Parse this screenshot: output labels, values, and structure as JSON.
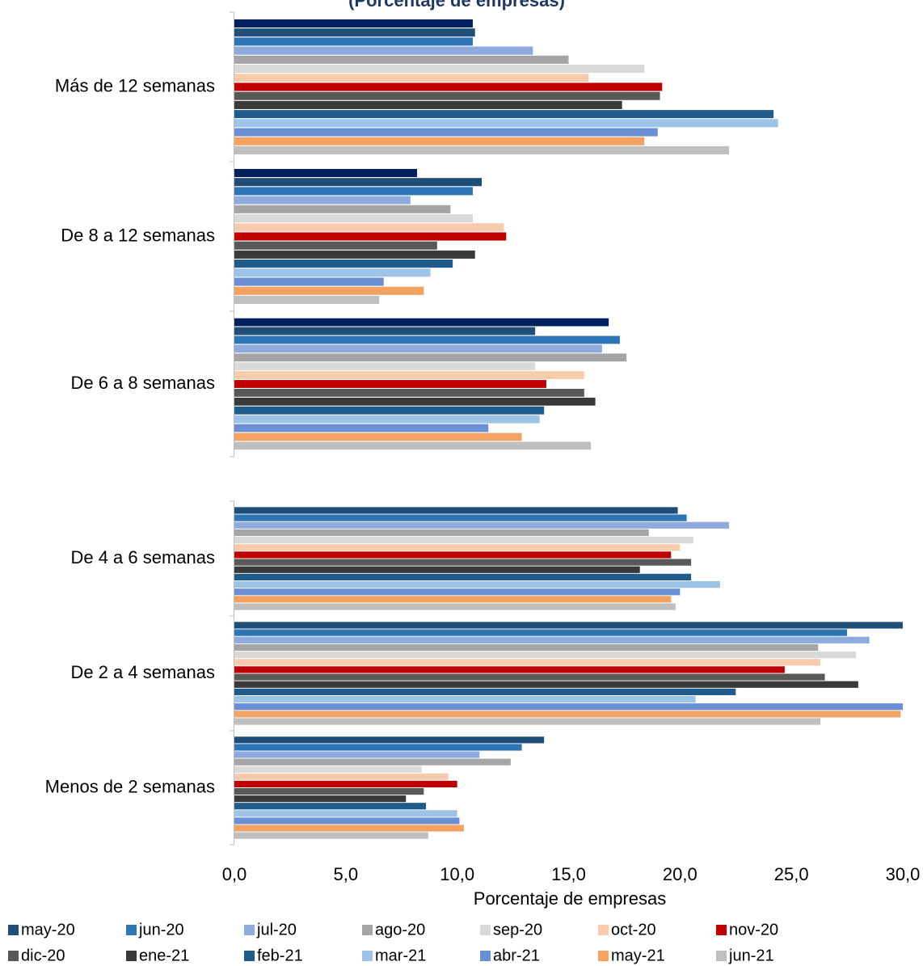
{
  "chart_data": {
    "type": "bar",
    "orientation": "horizontal",
    "title": "(Porcentaje de empresas)",
    "x_label": "Porcentaje de empresas",
    "categories": [
      "Más de 12 semanas",
      "De 8 a 12 semanas",
      "De 6 a 8 semanas",
      "De 4 a 6 semanas",
      "De 2 a 4 semanas",
      "Menos de 2 semanas"
    ],
    "xlim": [
      0,
      30
    ],
    "xticks": [
      {
        "value": 0,
        "label": "0,0"
      },
      {
        "value": 5,
        "label": "5,0"
      },
      {
        "value": 10,
        "label": "10,0"
      },
      {
        "value": 15,
        "label": "15,0"
      },
      {
        "value": 20,
        "label": "20,0"
      },
      {
        "value": 25,
        "label": "25,0"
      },
      {
        "value": 30,
        "label": "30,0"
      }
    ],
    "series": [
      {
        "name": null,
        "color": "#002060",
        "values": [
          10.7,
          8.2,
          16.8,
          null,
          null,
          null
        ]
      },
      {
        "name": "may-20",
        "color": "#1f4e79",
        "values": [
          10.8,
          11.1,
          13.5,
          19.9,
          30.0,
          13.9
        ]
      },
      {
        "name": "jun-20",
        "color": "#2e75b6",
        "values": [
          10.7,
          10.7,
          17.3,
          20.3,
          27.5,
          12.9
        ]
      },
      {
        "name": "jul-20",
        "color": "#8faadc",
        "values": [
          13.4,
          7.9,
          16.5,
          22.2,
          28.5,
          11.0
        ]
      },
      {
        "name": "ago-20",
        "color": "#a5a5a5",
        "values": [
          15.0,
          9.7,
          17.6,
          18.6,
          26.2,
          12.4
        ]
      },
      {
        "name": "sep-20",
        "color": "#d9d9d9",
        "values": [
          18.4,
          10.7,
          13.5,
          20.6,
          27.9,
          8.4
        ]
      },
      {
        "name": "oct-20",
        "color": "#f8cbad",
        "values": [
          15.9,
          12.1,
          15.7,
          20.0,
          26.3,
          9.6
        ]
      },
      {
        "name": "nov-20",
        "color": "#c00000",
        "values": [
          19.2,
          12.2,
          14.0,
          19.6,
          24.7,
          10.0
        ]
      },
      {
        "name": "dic-20",
        "color": "#595959",
        "values": [
          19.1,
          9.1,
          15.7,
          20.5,
          26.5,
          8.5
        ]
      },
      {
        "name": "ene-21",
        "color": "#3a3a3a",
        "values": [
          17.4,
          10.8,
          16.2,
          18.2,
          28.0,
          7.7
        ]
      },
      {
        "name": "feb-21",
        "color": "#1f5c8b",
        "values": [
          24.2,
          9.8,
          13.9,
          20.5,
          22.5,
          8.6
        ]
      },
      {
        "name": "mar-21",
        "color": "#9dc3e6",
        "values": [
          24.4,
          8.8,
          13.7,
          21.8,
          20.7,
          10.0
        ]
      },
      {
        "name": "abr-21",
        "color": "#6a8fd4",
        "values": [
          19.0,
          6.7,
          11.4,
          20.0,
          30.0,
          10.1
        ]
      },
      {
        "name": "may-21",
        "color": "#f4a261",
        "values": [
          18.4,
          8.5,
          12.9,
          19.6,
          29.9,
          10.3
        ]
      },
      {
        "name": "jun-21",
        "color": "#bfbfbf",
        "values": [
          22.2,
          6.5,
          16.0,
          19.8,
          26.3,
          8.7
        ]
      }
    ]
  }
}
